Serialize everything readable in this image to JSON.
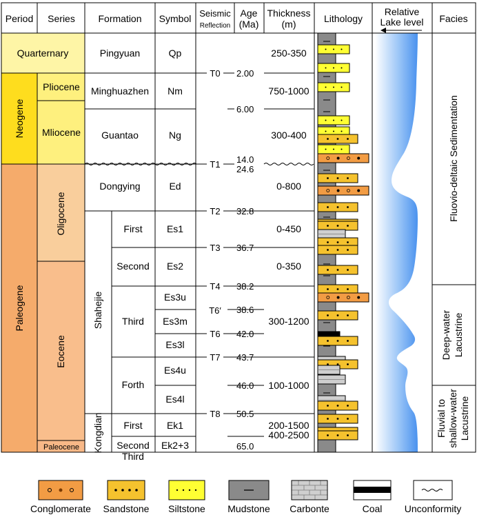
{
  "headers": {
    "period": "Period",
    "series": "Series",
    "formation": "Formation",
    "symbol": "Symbol",
    "seismic_line1": "Seismic",
    "seismic_line2": "Reflection",
    "age_line1": "Age",
    "age_line2": "(Ma)",
    "thickness_line1": "Thickness",
    "thickness_line2": "(m)",
    "lithology": "Lithology",
    "lake_line1": "Relative",
    "lake_line2": "Lake level",
    "facies": "Facies"
  },
  "periods": [
    {
      "label": "Quarternary",
      "color": "#FEF5A6",
      "vertical": false
    },
    {
      "label": "Neogene",
      "color": "#FEDD1E",
      "vertical": true
    },
    {
      "label": "Paleogene",
      "color": "#F5AB6B",
      "vertical": true
    }
  ],
  "series": [
    {
      "label": "Pliocene",
      "color": "#FEF07E"
    },
    {
      "label": "Mliocene",
      "color": "#FEF07E"
    },
    {
      "label": "Oligocene",
      "color": "#F9CE9C"
    },
    {
      "label": "Eocene",
      "color": "#F9BE8C"
    },
    {
      "label": "Paleocene",
      "color": "#F8B887"
    }
  ],
  "formations": {
    "single": [
      "Pingyuan",
      "Minghuazhen",
      "Guantao",
      "Dongying"
    ],
    "shahejie": "Shahejie",
    "shahejie_members": [
      "First",
      "Second",
      "Third",
      "Forth"
    ],
    "kongdian": "Kongdian",
    "kongdian_members": [
      "First",
      "Second",
      "Third"
    ]
  },
  "symbols": [
    "Qp",
    "Nm",
    "Ng",
    "Ed",
    "Es1",
    "Es2",
    "Es3u",
    "Es3m",
    "Es3l",
    "Es4u",
    "Es4l",
    "Ek1",
    "Ek2+3"
  ],
  "seismic": [
    "T0",
    "T1",
    "T2",
    "T3",
    "T4",
    "T6′",
    "T6",
    "T7",
    "T8"
  ],
  "ages": [
    "2.00",
    "6.00",
    "14.0",
    "24.6",
    "32.8",
    "36.7",
    "38.2",
    "38.6",
    "42.0",
    "43.7",
    "46.0",
    "50.5",
    "65.0"
  ],
  "thickness": [
    "250-350",
    "750-1000",
    "300-400",
    "0-800",
    "0-450",
    "0-350",
    "300-1200",
    "100-1000",
    "200-1500",
    "400-2500"
  ],
  "facies": [
    "Fluovio-deltaic Sedimentation",
    "Deep-water",
    "Lacustrine",
    "Fluvial to",
    "shallow-water",
    "Lacustrine"
  ],
  "legend": [
    "Conglomerate",
    "Sandstone",
    "Siltstone",
    "Mudstone",
    "Carbonte",
    "Coal",
    "Unconformity"
  ],
  "colors": {
    "siltstone": "#FFFF33",
    "sandstone": "#F5C22E",
    "conglomerate": "#F29C44",
    "mudstone": "#8A8A8A",
    "carbonate": "#CFCFCF",
    "lake_blue": "#5AA0F0"
  }
}
